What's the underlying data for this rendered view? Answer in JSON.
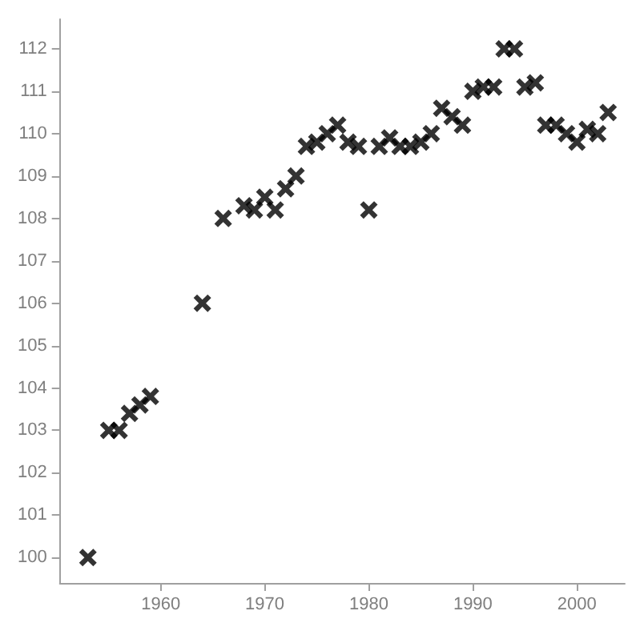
{
  "chart_data": {
    "type": "scatter",
    "marker": "cross",
    "grid": false,
    "x": [
      1953,
      1955,
      1956,
      1957,
      1958,
      1959,
      1964,
      1966,
      1968,
      1969,
      1970,
      1971,
      1972,
      1973,
      1974,
      1975,
      1976,
      1977,
      1978,
      1979,
      1980,
      1981,
      1982,
      1983,
      1984,
      1985,
      1986,
      1987,
      1988,
      1989,
      1990,
      1991,
      1992,
      1993,
      1994,
      1995,
      1996,
      1997,
      1998,
      1999,
      2000,
      2001,
      2002,
      2003
    ],
    "series": [
      {
        "color": "#000000",
        "values": [
          100,
          103,
          103,
          103.4,
          103.6,
          103.8,
          106,
          108,
          108.3,
          108.2,
          108.5,
          108.2,
          108.7,
          109,
          109.7,
          109.8,
          110,
          110.2,
          109.8,
          109.7,
          108.2,
          109.7,
          109.9,
          109.7,
          109.7,
          109.8,
          110,
          110.6,
          110.4,
          110.2,
          111,
          111.1,
          111.1,
          112,
          112,
          111.1,
          111.2,
          110.2,
          110.2,
          110,
          109.8,
          110.1,
          110,
          110.5
        ]
      }
    ],
    "xlim": [
      1950.3,
      2004.6
    ],
    "xticks": [
      1960,
      1970,
      1980,
      1990,
      2000
    ],
    "ylim": [
      99.4,
      112.7
    ],
    "yticks": [
      100,
      101,
      102,
      103,
      104,
      105,
      106,
      107,
      108,
      109,
      110,
      111,
      112
    ]
  }
}
